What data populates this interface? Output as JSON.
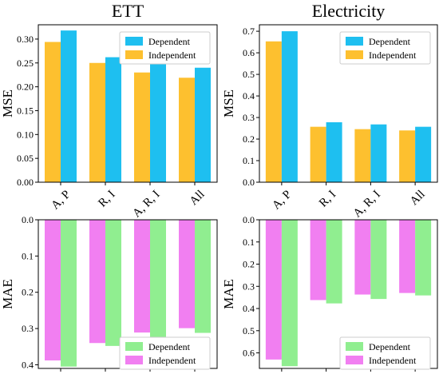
{
  "chart_data": [
    {
      "type": "bar",
      "title": "ETT",
      "ylabel": "MSE",
      "categories": [
        "A, P",
        "R, I",
        "A, R, I",
        "All"
      ],
      "ylim": [
        0,
        0.33
      ],
      "yticks": [
        0.0,
        0.05,
        0.1,
        0.15,
        0.2,
        0.25,
        0.3
      ],
      "legend": "top-right",
      "series": [
        {
          "name": "Dependent",
          "color": "#1ebff0",
          "values": [
            0.318,
            0.262,
            0.249,
            0.24
          ]
        },
        {
          "name": "Independent",
          "color": "#fdc02f",
          "values": [
            0.294,
            0.25,
            0.23,
            0.219
          ]
        }
      ]
    },
    {
      "type": "bar",
      "title": "Electricity",
      "ylabel": "MSE",
      "categories": [
        "A, P",
        "R, I",
        "A, R, I",
        "All"
      ],
      "ylim": [
        0,
        0.73
      ],
      "yticks": [
        0.0,
        0.1,
        0.2,
        0.3,
        0.4,
        0.5,
        0.6,
        0.7
      ],
      "legend": "top-right",
      "series": [
        {
          "name": "Dependent",
          "color": "#1ebff0",
          "values": [
            0.7,
            0.278,
            0.268,
            0.257
          ]
        },
        {
          "name": "Independent",
          "color": "#fdc02f",
          "values": [
            0.653,
            0.257,
            0.246,
            0.24
          ]
        }
      ]
    },
    {
      "type": "bar",
      "title": "",
      "ylabel": "MAE",
      "inverted": true,
      "categories": [
        "A, P",
        "R, I",
        "A, R, I",
        "All"
      ],
      "ylim": [
        0,
        0.41
      ],
      "yticks": [
        0.0,
        0.1,
        0.2,
        0.3,
        0.4
      ],
      "legend": "bottom-right",
      "series": [
        {
          "name": "Dependent",
          "color": "#90ee90",
          "values": [
            0.405,
            0.348,
            0.327,
            0.312
          ]
        },
        {
          "name": "Independent",
          "color": "#f17ff1",
          "values": [
            0.388,
            0.34,
            0.311,
            0.299
          ]
        }
      ]
    },
    {
      "type": "bar",
      "title": "",
      "ylabel": "MAE",
      "inverted": true,
      "categories": [
        "A, P",
        "R, I",
        "A, R, I",
        "All"
      ],
      "ylim": [
        0,
        0.67
      ],
      "yticks": [
        0.0,
        0.1,
        0.2,
        0.3,
        0.4,
        0.5,
        0.6
      ],
      "legend": "bottom-right",
      "series": [
        {
          "name": "Dependent",
          "color": "#90ee90",
          "values": [
            0.66,
            0.377,
            0.357,
            0.341
          ]
        },
        {
          "name": "Independent",
          "color": "#f17ff1",
          "values": [
            0.63,
            0.362,
            0.337,
            0.33
          ]
        }
      ]
    }
  ]
}
